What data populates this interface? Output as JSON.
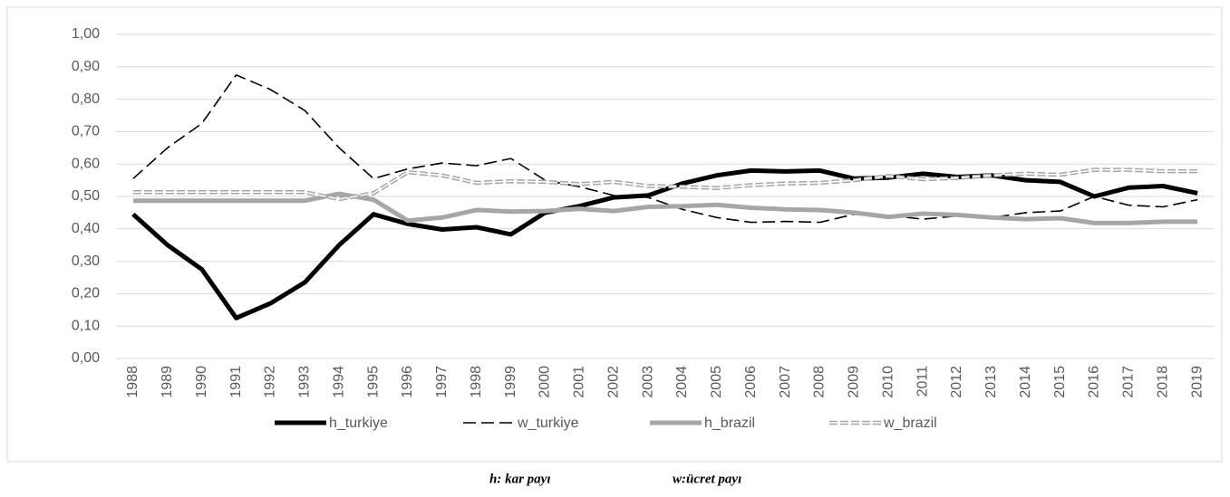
{
  "chart_data": {
    "type": "line",
    "categories": [
      "1988",
      "1989",
      "1990",
      "1991",
      "1992",
      "1993",
      "1994",
      "1995",
      "1996",
      "1997",
      "1998",
      "1999",
      "2000",
      "2001",
      "2002",
      "2003",
      "2004",
      "2005",
      "2006",
      "2007",
      "2008",
      "2009",
      "2010",
      "2011",
      "2012",
      "2013",
      "2014",
      "2015",
      "2016",
      "2017",
      "2018",
      "2019"
    ],
    "series": [
      {
        "name": "h_turkiye",
        "color": "#000000",
        "line_style": "solid",
        "values": [
          0.445,
          0.35,
          0.275,
          0.125,
          0.17,
          0.235,
          0.35,
          0.445,
          0.415,
          0.398,
          0.405,
          0.383,
          0.45,
          0.47,
          0.497,
          0.503,
          0.54,
          0.565,
          0.58,
          0.577,
          0.58,
          0.555,
          0.558,
          0.57,
          0.56,
          0.565,
          0.55,
          0.545,
          0.5,
          0.527,
          0.532,
          0.51
        ]
      },
      {
        "name": "w_turkiye",
        "color": "#000000",
        "line_style": "dashed",
        "values": [
          0.555,
          0.65,
          0.725,
          0.875,
          0.83,
          0.765,
          0.65,
          0.555,
          0.585,
          0.603,
          0.595,
          0.617,
          0.55,
          0.53,
          0.503,
          0.497,
          0.46,
          0.435,
          0.42,
          0.423,
          0.42,
          0.445,
          0.442,
          0.43,
          0.44,
          0.435,
          0.45,
          0.455,
          0.5,
          0.473,
          0.468,
          0.49
        ]
      },
      {
        "name": "h_brazil",
        "color": "#a6a6a6",
        "line_style": "solid",
        "values": [
          0.487,
          0.487,
          0.487,
          0.487,
          0.487,
          0.487,
          0.508,
          0.49,
          0.425,
          0.435,
          0.458,
          0.453,
          0.455,
          0.462,
          0.455,
          0.468,
          0.47,
          0.474,
          0.465,
          0.46,
          0.458,
          0.45,
          0.437,
          0.447,
          0.443,
          0.435,
          0.43,
          0.433,
          0.418,
          0.418,
          0.422,
          0.422
        ]
      },
      {
        "name": "w_brazil",
        "color": "#a6a6a6",
        "line_style": "double-dashed",
        "values": [
          0.513,
          0.513,
          0.513,
          0.513,
          0.513,
          0.513,
          0.492,
          0.51,
          0.575,
          0.565,
          0.542,
          0.547,
          0.545,
          0.538,
          0.545,
          0.532,
          0.53,
          0.526,
          0.535,
          0.54,
          0.542,
          0.55,
          0.563,
          0.553,
          0.557,
          0.565,
          0.57,
          0.567,
          0.582,
          0.582,
          0.578,
          0.578
        ]
      }
    ],
    "ylim": [
      0,
      1
    ],
    "yticks": [
      {
        "value": 0,
        "label": "0,00"
      },
      {
        "value": 0.1,
        "label": "0,10"
      },
      {
        "value": 0.2,
        "label": "0,20"
      },
      {
        "value": 0.3,
        "label": "0,30"
      },
      {
        "value": 0.4,
        "label": "0,40"
      },
      {
        "value": 0.5,
        "label": "0,50"
      },
      {
        "value": 0.6,
        "label": "0,60"
      },
      {
        "value": 0.7,
        "label": "0,70"
      },
      {
        "value": 0.8,
        "label": "0,80"
      },
      {
        "value": 0.9,
        "label": "0,90"
      },
      {
        "value": 1,
        "label": "1,00"
      }
    ],
    "grid": true,
    "legend": "bottom",
    "notes": [
      "h: kar payı",
      "w:ücret payı"
    ]
  }
}
